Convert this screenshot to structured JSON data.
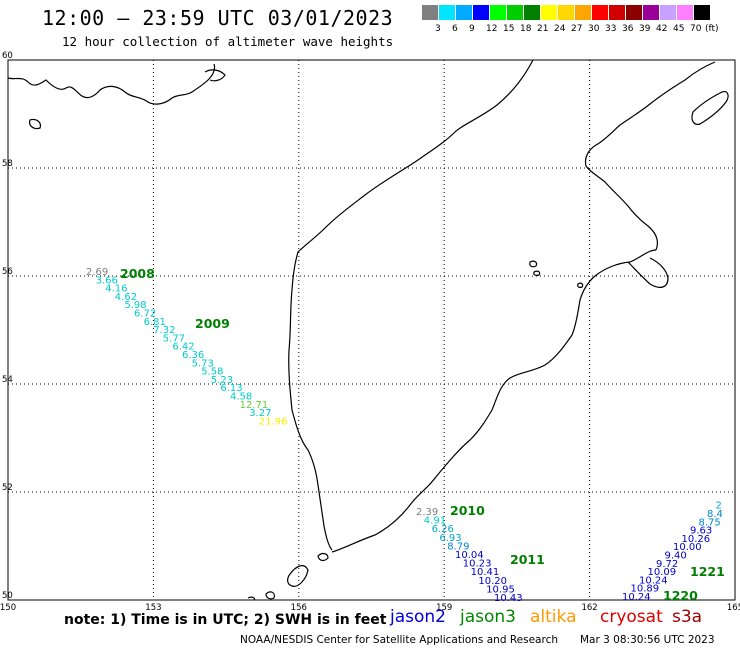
{
  "header": {
    "title": "12:00 – 23:59 UTC 03/01/2023",
    "subtitle": "12 hour collection of altimeter wave heights"
  },
  "legend": {
    "unit": "(ft)",
    "bins": [
      {
        "label": "3",
        "color": "#808080"
      },
      {
        "label": "6",
        "color": "#00e5ff"
      },
      {
        "label": "9",
        "color": "#00aaff"
      },
      {
        "label": "12",
        "color": "#0000ff"
      },
      {
        "label": "15",
        "color": "#00ff00"
      },
      {
        "label": "18",
        "color": "#00cc00"
      },
      {
        "label": "21",
        "color": "#008000"
      },
      {
        "label": "24",
        "color": "#ffff00"
      },
      {
        "label": "27",
        "color": "#ffd700"
      },
      {
        "label": "30",
        "color": "#ffa500"
      },
      {
        "label": "33",
        "color": "#ff0000"
      },
      {
        "label": "36",
        "color": "#d00000"
      },
      {
        "label": "39",
        "color": "#8b0000"
      },
      {
        "label": "42",
        "color": "#990099"
      },
      {
        "label": "45",
        "color": "#c8a0ff"
      },
      {
        "label": "70",
        "color": "#ff80ff"
      },
      {
        "label": "",
        "color": "#000000"
      }
    ]
  },
  "axes": {
    "lon_ticks": [
      "150",
      "153",
      "156",
      "159",
      "162",
      "165"
    ],
    "lat_ticks": [
      "60",
      "58",
      "56",
      "54",
      "52",
      "50"
    ]
  },
  "passes": [
    {
      "time": "2008",
      "color": "#008000",
      "points": [
        {
          "v": "2.69",
          "c": "#808080"
        },
        {
          "v": "3.66",
          "c": "#00cccc"
        },
        {
          "v": "4.16",
          "c": "#00cccc"
        },
        {
          "v": "4.62",
          "c": "#00cccc"
        },
        {
          "v": "5.98",
          "c": "#00cccc"
        },
        {
          "v": "6.72",
          "c": "#00cccc"
        },
        {
          "v": "6.81",
          "c": "#00cccc"
        },
        {
          "v": "7.32",
          "c": "#00cccc"
        },
        {
          "v": "5.77",
          "c": "#00cccc"
        },
        {
          "v": "6.42",
          "c": "#00cccc"
        },
        {
          "v": "6.36",
          "c": "#00cccc"
        },
        {
          "v": "5.73",
          "c": "#00cccc"
        },
        {
          "v": "5.58",
          "c": "#00cccc"
        },
        {
          "v": "5.23",
          "c": "#00cccc"
        },
        {
          "v": "6.13",
          "c": "#00cccc"
        },
        {
          "v": "4.58",
          "c": "#00cccc"
        },
        {
          "v": "12.71",
          "c": "#66cc33"
        },
        {
          "v": "3.27",
          "c": "#00cccc"
        },
        {
          "v": "21.96",
          "c": "#ffee00"
        }
      ]
    },
    {
      "time": "2009",
      "color": "#008000",
      "points": []
    },
    {
      "time": "2010",
      "color": "#008000",
      "points": [
        {
          "v": "2.39",
          "c": "#808080"
        },
        {
          "v": "4.91",
          "c": "#00cccc"
        },
        {
          "v": "6.26",
          "c": "#00aacc"
        },
        {
          "v": "6.93",
          "c": "#00aacc"
        },
        {
          "v": "8.79",
          "c": "#0088cc"
        },
        {
          "v": "10.04",
          "c": "#0000cc"
        },
        {
          "v": "10.23",
          "c": "#0000cc"
        },
        {
          "v": "10.41",
          "c": "#0000cc"
        },
        {
          "v": "10.20",
          "c": "#0000cc"
        },
        {
          "v": "10.95",
          "c": "#0000cc"
        },
        {
          "v": "10.43",
          "c": "#0000cc"
        }
      ]
    },
    {
      "time": "2011",
      "color": "#008000",
      "points": []
    },
    {
      "time": "1220",
      "color": "#008000",
      "points": [
        {
          "v": "10.24",
          "c": "#0000cc"
        },
        {
          "v": "10.89",
          "c": "#0000cc"
        },
        {
          "v": "10.24",
          "c": "#0000cc"
        },
        {
          "v": "10.09",
          "c": "#0000cc"
        },
        {
          "v": "9.72",
          "c": "#0000cc"
        },
        {
          "v": "9.40",
          "c": "#0000cc"
        },
        {
          "v": "10.00",
          "c": "#0000cc"
        },
        {
          "v": "10.26",
          "c": "#0000cc"
        },
        {
          "v": "9.63",
          "c": "#0000cc"
        },
        {
          "v": "8.75",
          "c": "#0088cc"
        },
        {
          "v": "8.4",
          "c": "#0088cc"
        },
        {
          "v": "2",
          "c": "#00aacc"
        }
      ]
    },
    {
      "time": "1221",
      "color": "#008000",
      "points": []
    }
  ],
  "footer": {
    "note": "note: 1) Time is in UTC; 2) SWH is in feet",
    "missions": [
      {
        "name": "jason2",
        "color": "#0000dd"
      },
      {
        "name": "jason3",
        "color": "#008800"
      },
      {
        "name": "altika",
        "color": "#ff9900"
      },
      {
        "name": "cryosat",
        "color": "#dd0000"
      },
      {
        "name": "s3a",
        "color": "#990000"
      }
    ],
    "credit": "NOAA/NESDIS Center for Satellite Applications and Research",
    "generated": "Mar  3 08:30:56 UTC 2023"
  }
}
